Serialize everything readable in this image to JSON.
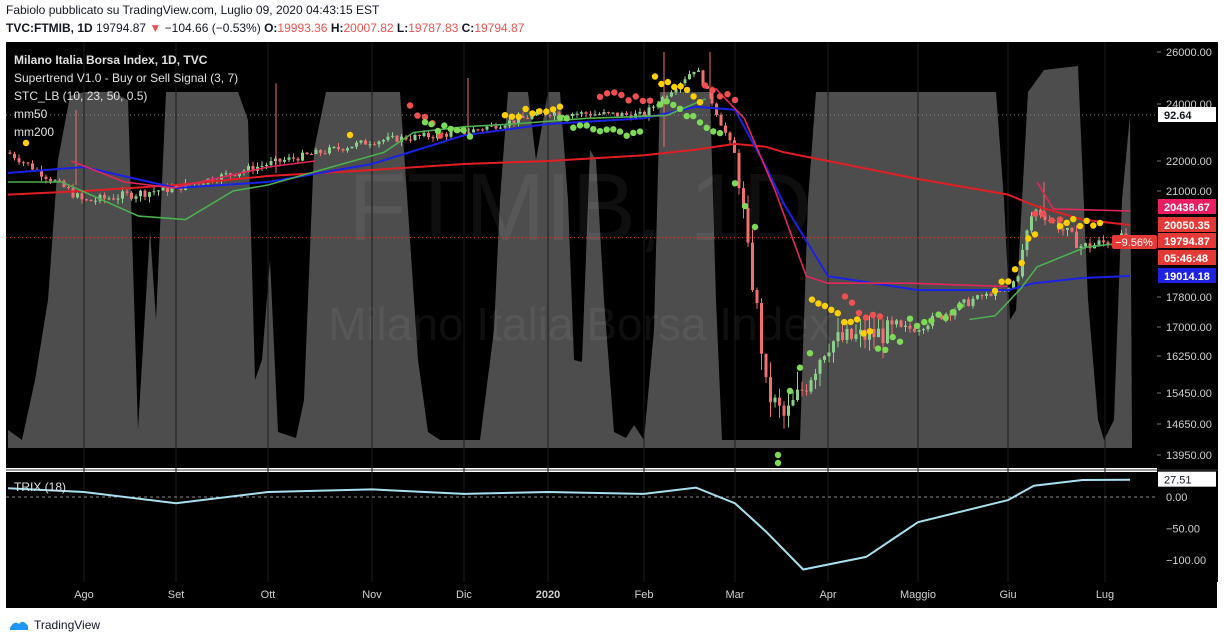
{
  "header": {
    "line1": "Fabiolo pubblicato su TradingView.com, Luglio 09, 2020 04:43:15 EST",
    "symbol": "TVC:FTMIB, 1D",
    "price": "19794.87",
    "arrow": "▼",
    "change": "−104.66 (−0.53%)",
    "o_label": "O:",
    "o_value": "19993.36",
    "h_label": "H:",
    "h_value": "20007.82",
    "l_label": "L:",
    "l_value": "19787.83",
    "c_label": "C:",
    "c_value": "19794.87"
  },
  "legend": [
    {
      "text": "Milano Italia Borsa Index, 1D, TVC",
      "bold": true
    },
    {
      "text": "Supertrend V1.0 - Buy or Sell Signal (3, 7)"
    },
    {
      "text": "STC_LB (10, 23, 50, 0.5)"
    },
    {
      "text": "mm50"
    },
    {
      "text": "mm200"
    }
  ],
  "watermark": {
    "symbol": "FTMIB, 1D",
    "name": "Milano Italia Borsa Index"
  },
  "price_axis": {
    "labels": [
      "26000.00",
      "24000.00",
      "22000.00",
      "21000.00",
      "20050.35",
      "19014.18",
      "17800.00",
      "17000.00",
      "16250.00",
      "15450.00",
      "14650.00",
      "13950.00"
    ],
    "badges": [
      {
        "text": "92.64",
        "color": "#ffffff",
        "fg": "#131722"
      },
      {
        "text": "20438.67",
        "color": "#e91e63",
        "fg": "#ffffff"
      },
      {
        "text": "20050.35",
        "color": "#e53935",
        "fg": "#ffffff"
      },
      {
        "text": "19794.87",
        "color": "#e53935",
        "fg": "#ffffff"
      },
      {
        "text": "05:46:48",
        "color": "#e53935",
        "fg": "#ffffff"
      },
      {
        "text": "19014.18",
        "color": "#1e22e0",
        "fg": "#ffffff"
      }
    ],
    "pct_badge": "−9.56%"
  },
  "trix_axis": {
    "labels": [
      "0.00",
      "−50.00",
      "−100.00"
    ],
    "badge": "27.51",
    "title": "TRIX (18)"
  },
  "time_axis": [
    "Ago",
    "Set",
    "Ott",
    "Nov",
    "Dic",
    "2020",
    "Feb",
    "Mar",
    "Apr",
    "Maggio",
    "Giu",
    "Lug"
  ],
  "footer": {
    "brand": "TradingView"
  },
  "colors": {
    "background": "#000000",
    "mm50": "#1a22e6",
    "mm200": "#e01f24",
    "supertrend_up": "#4caf50",
    "supertrend_down": "#e0285a",
    "stc_fill": "#5a5a5a",
    "trix": "#a8e0f0",
    "candle_up": "#8bd18b",
    "candle_down": "#f07070"
  },
  "chart_data": [
    {
      "type": "line",
      "title": "Milano Italia Borsa Index, 1D, TVC",
      "x": [
        "2019-07-08",
        "2019-08-01",
        "2019-09-02",
        "2019-10-01",
        "2019-11-01",
        "2019-12-02",
        "2020-01-02",
        "2020-02-03",
        "2020-02-19",
        "2020-03-02",
        "2020-03-12",
        "2020-03-18",
        "2020-04-01",
        "2020-05-04",
        "2020-06-01",
        "2020-06-09",
        "2020-06-24",
        "2020-07-09"
      ],
      "series": [
        {
          "name": "FTMIB close",
          "values": [
            22300,
            20700,
            21100,
            21900,
            22700,
            23000,
            23700,
            23600,
            25400,
            22200,
            15500,
            14800,
            16600,
            17000,
            18200,
            20500,
            19600,
            19794.87
          ]
        },
        {
          "name": "mm50",
          "values": [
            21600,
            21800,
            21100,
            21300,
            21900,
            22900,
            23300,
            23500,
            23900,
            23800,
            21800,
            20600,
            19000,
            18200,
            18200,
            18600,
            18900,
            19014.18
          ]
        },
        {
          "name": "mm200",
          "values": [
            20900,
            21000,
            21200,
            21500,
            21700,
            21900,
            22000,
            22200,
            22400,
            22600,
            22500,
            22300,
            22000,
            21400,
            20900,
            20600,
            20200,
            20050.35
          ]
        }
      ],
      "ylim": [
        13950,
        26000
      ],
      "last_price": 19794.87
    },
    {
      "type": "line",
      "title": "TRIX (18)",
      "x": [
        "2019-07-08",
        "2019-08-01",
        "2019-09-02",
        "2019-10-01",
        "2019-11-01",
        "2019-12-02",
        "2020-01-02",
        "2020-02-03",
        "2020-02-19",
        "2020-03-02",
        "2020-03-12",
        "2020-03-24",
        "2020-04-15",
        "2020-05-04",
        "2020-06-01",
        "2020-06-09",
        "2020-06-24",
        "2020-07-09"
      ],
      "series": [
        {
          "name": "TRIX (18)",
          "values": [
            14,
            8,
            -10,
            8,
            12,
            5,
            8,
            5,
            15,
            -10,
            -55,
            -115,
            -95,
            -40,
            -5,
            18,
            27,
            27.51
          ]
        }
      ],
      "ylim": [
        -120,
        40
      ]
    }
  ]
}
